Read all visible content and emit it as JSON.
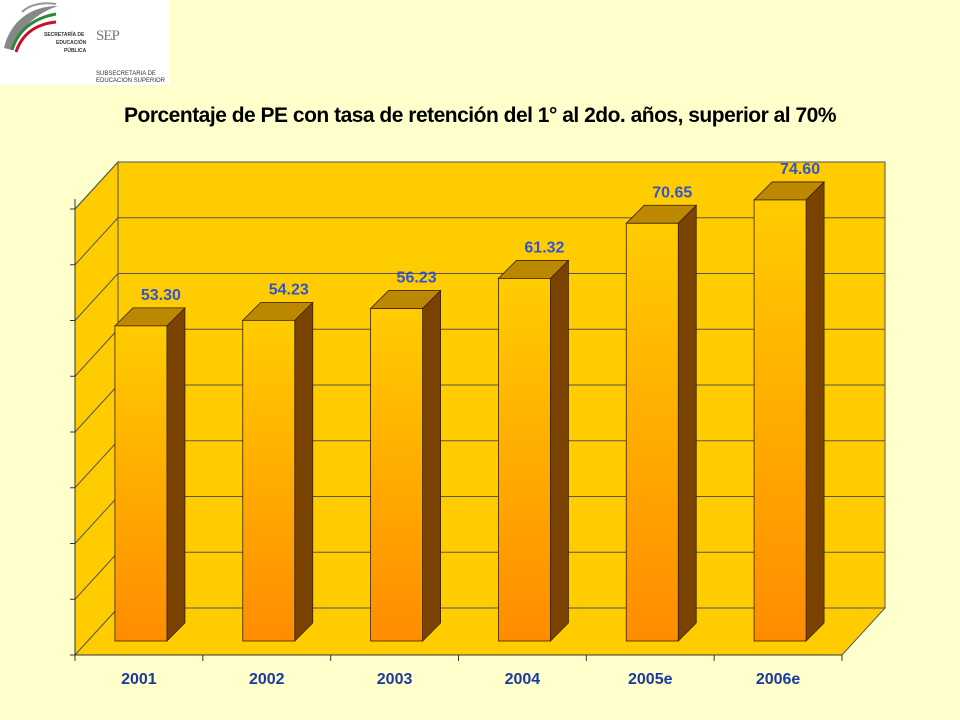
{
  "logo": {
    "line1": "SECRETARÍA DE",
    "line2": "EDUCACIÓN",
    "line3": "PÚBLICA",
    "mark": "SEP",
    "sub1": "SUBSECRETARIA DE",
    "sub2": "EDUCACION SUPERIOR",
    "icon": "eagle-emblem-icon"
  },
  "chart_data": {
    "type": "bar",
    "title": "Porcentaje de PE con tasa de retención del 1° al 2do. años, superior al 70%",
    "categories": [
      "2001",
      "2002",
      "2003",
      "2004",
      "2005e",
      "2006e"
    ],
    "values": [
      53.3,
      54.23,
      56.23,
      61.32,
      70.65,
      74.6
    ],
    "value_labels": [
      "53.30",
      "54.23",
      "56.23",
      "61.32",
      "70.65",
      "74.60"
    ],
    "ylim": [
      0,
      80
    ],
    "grid": true,
    "legend": "none",
    "xlabel": "",
    "ylabel": "",
    "colors": {
      "bar_front": "#ff9900",
      "bar_light": "#ffcc00",
      "bar_side": "#7a4400",
      "bar_top": "#bb8800",
      "back_wall": "#ffcc00",
      "side_wall": "#ffcc00",
      "floor": "#ffcc00",
      "value_label": "#3355cc",
      "category_label": "#1a3aa0"
    }
  }
}
